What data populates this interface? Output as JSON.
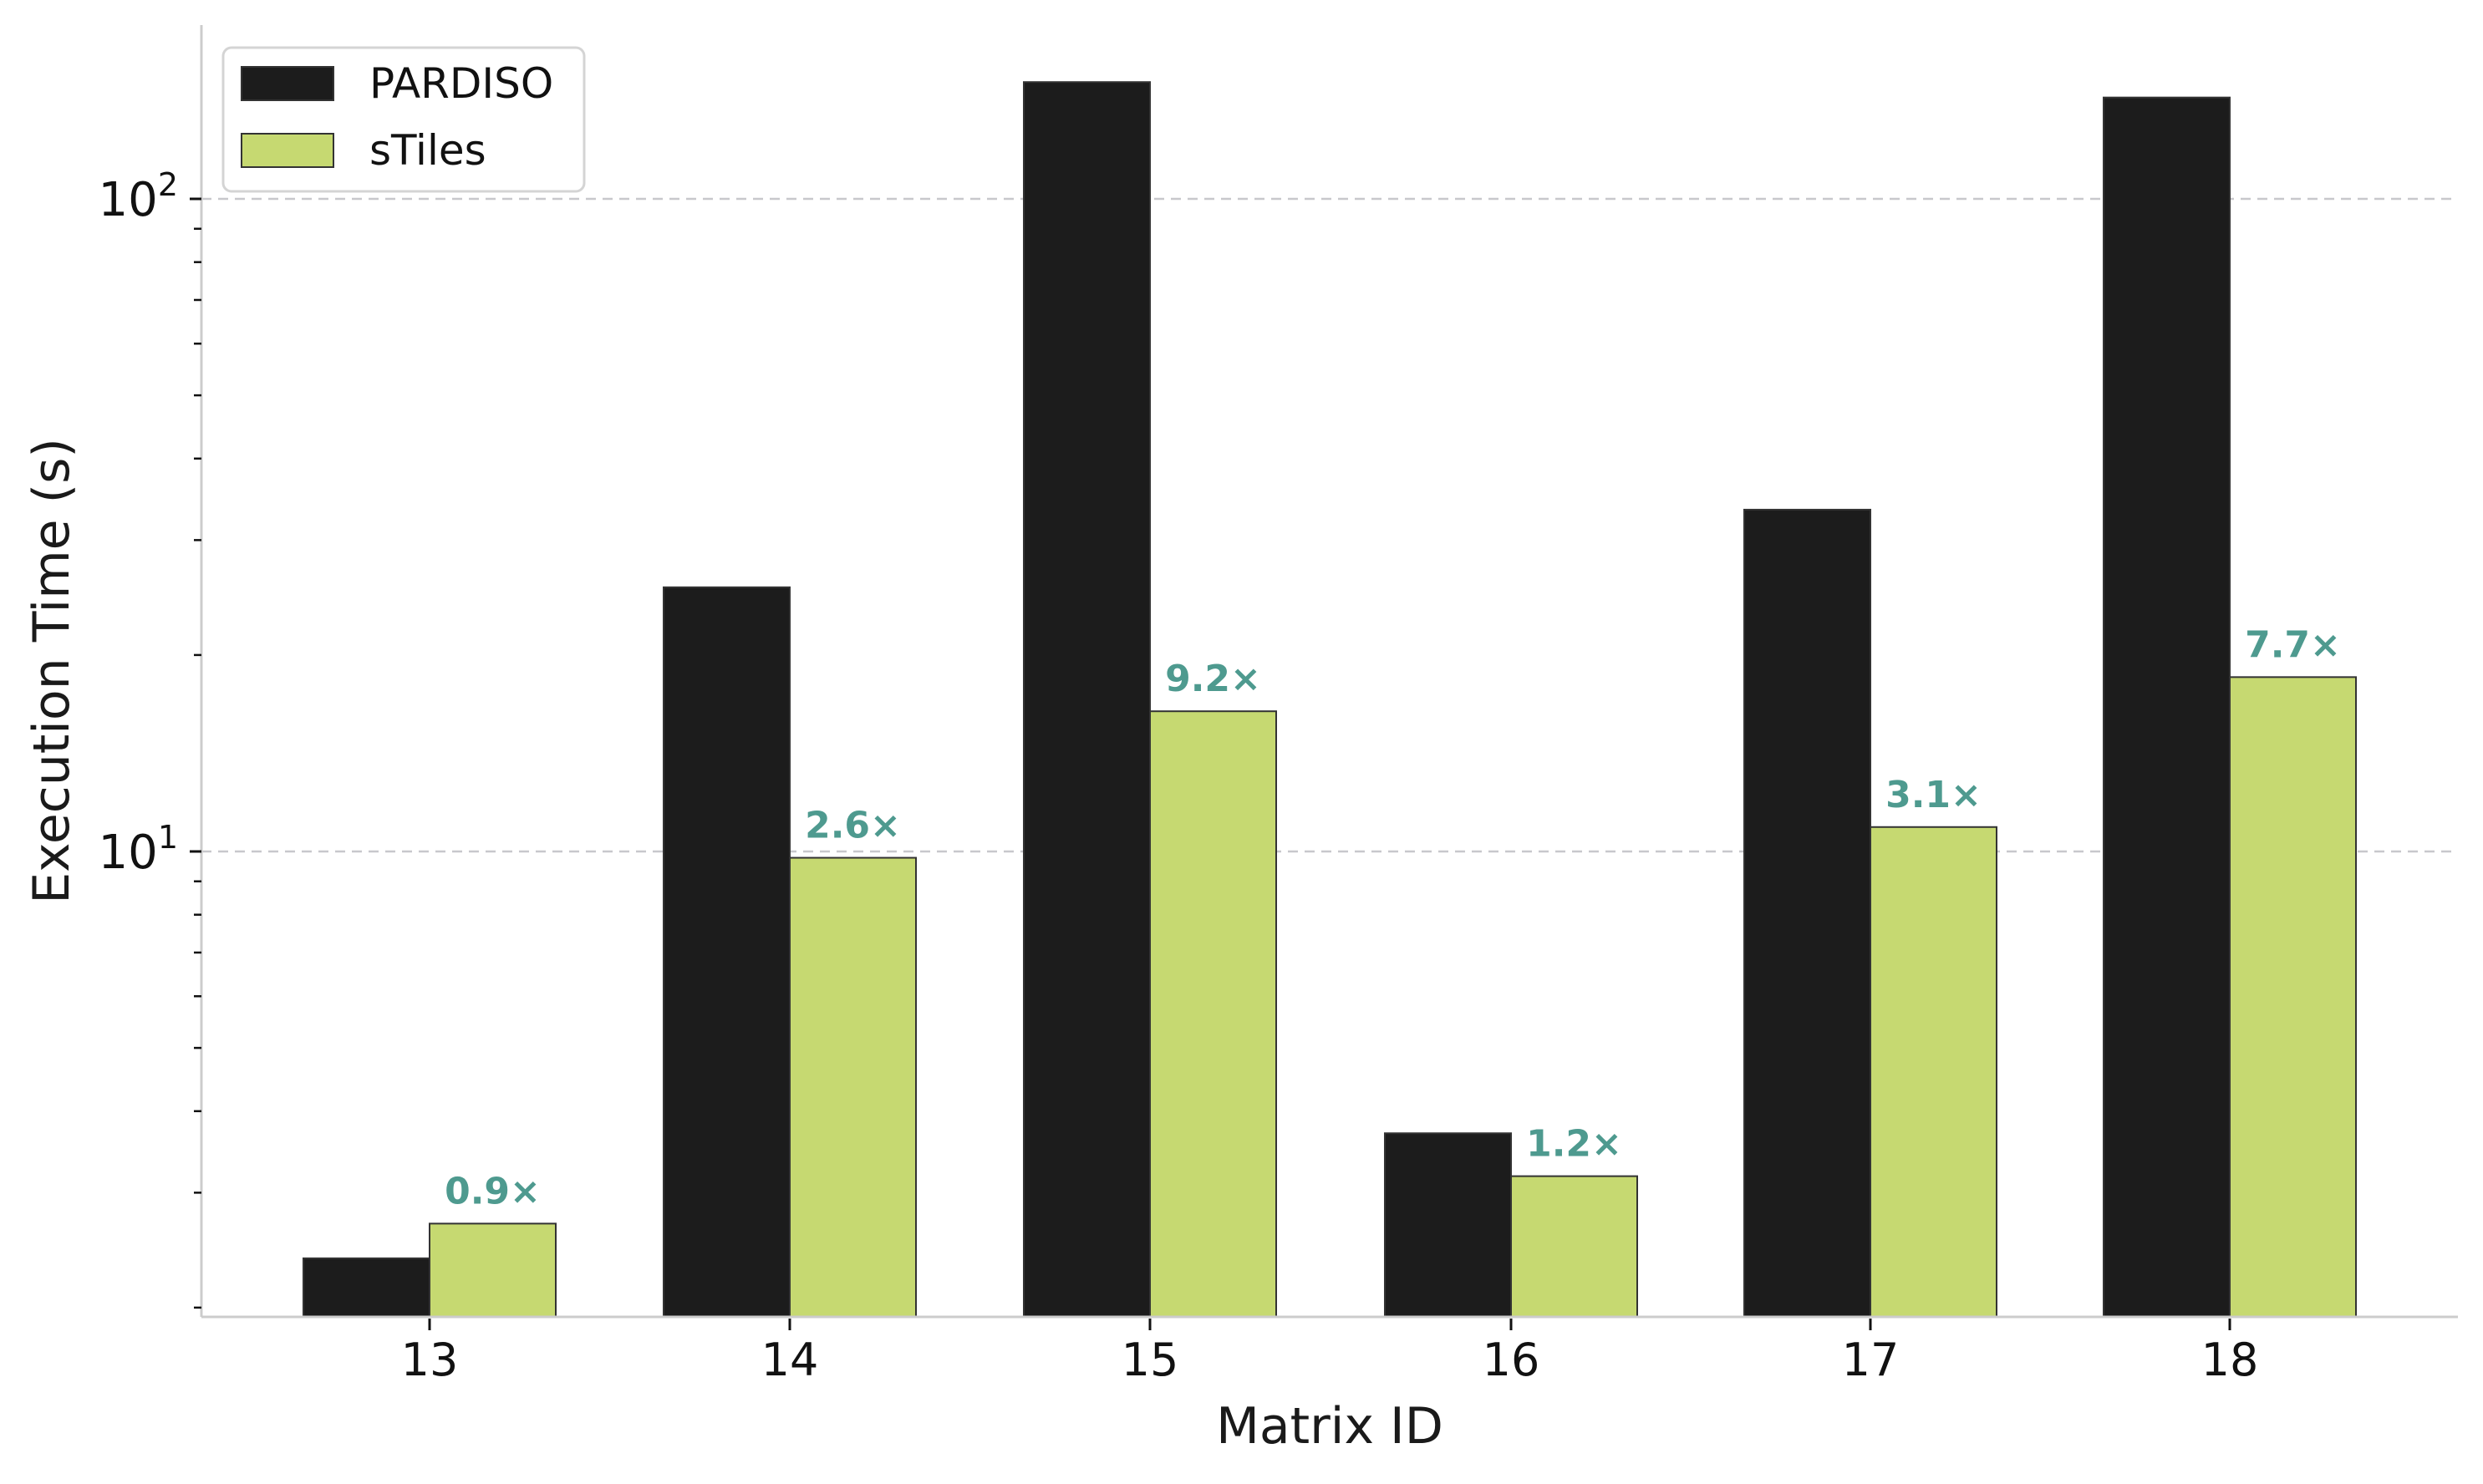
{
  "chart_data": {
    "type": "bar",
    "title": "",
    "xlabel": "Matrix ID",
    "ylabel": "Execution Time (s)",
    "yscale": "log",
    "ylim": [
      1.95,
      185
    ],
    "categories": [
      "13",
      "14",
      "15",
      "16",
      "17",
      "18"
    ],
    "series": [
      {
        "name": "PARDISO",
        "color": "#1c1c1c",
        "values": [
          2.38,
          25.4,
          151,
          3.7,
          33.4,
          143
        ]
      },
      {
        "name": "sTiles",
        "color": "#c6d971",
        "values": [
          2.69,
          9.78,
          16.4,
          3.18,
          10.9,
          18.5
        ]
      }
    ],
    "annotations": [
      "0.9×",
      "2.6×",
      "9.2×",
      "1.2×",
      "3.1×",
      "7.7×"
    ],
    "annotation_color": "#4e9a8f",
    "yticks": [
      {
        "value": 10,
        "label_base": "10",
        "label_exp": "1"
      },
      {
        "value": 100,
        "label_base": "10",
        "label_exp": "2"
      }
    ],
    "grid": {
      "y_major": true,
      "style": "dashed",
      "color": "#c8c8cc"
    },
    "legend": {
      "position": "upper left",
      "entries": [
        "PARDISO",
        "sTiles"
      ]
    }
  }
}
